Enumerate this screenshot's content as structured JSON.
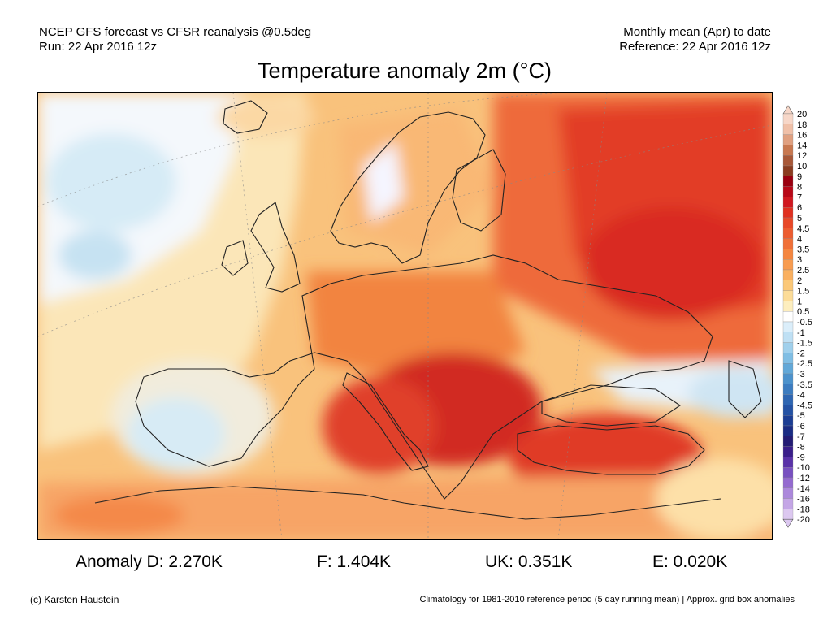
{
  "header": {
    "line1_left": "NCEP GFS forecast vs CFSR reanalysis @0.5deg",
    "line2_left": "Run: 22 Apr 2016 12z",
    "line1_right": "Monthly mean (Apr) to date",
    "line2_right": "Reference: 22 Apr 2016 12z"
  },
  "title": "Temperature anomaly 2m (°C)",
  "legend": {
    "labels": [
      "20",
      "18",
      "16",
      "14",
      "12",
      "10",
      "9",
      "8",
      "7",
      "6",
      "5",
      "4.5",
      "4",
      "3.5",
      "3",
      "2.5",
      "2",
      "1.5",
      "1",
      "0.5",
      "-0.5",
      "-1",
      "-1.5",
      "-2",
      "-2.5",
      "-3",
      "-3.5",
      "-4",
      "-4.5",
      "-5",
      "-6",
      "-7",
      "-8",
      "-9",
      "-10",
      "-12",
      "-14",
      "-16",
      "-18",
      "-20"
    ],
    "colors": [
      "#f7d7c8",
      "#f0c0a8",
      "#e0a080",
      "#c87850",
      "#a85838",
      "#8a3c20",
      "#9a0010",
      "#b80818",
      "#d01820",
      "#e03020",
      "#e84828",
      "#ec5c30",
      "#f07038",
      "#f48640",
      "#f89c50",
      "#fab060",
      "#fbc878",
      "#fcdc98",
      "#fdeebe",
      "#ffffff",
      "#dbeefa",
      "#bfe0f4",
      "#a0d0ec",
      "#80bee4",
      "#62a8d8",
      "#4c92cc",
      "#3c7cc0",
      "#2e66b2",
      "#2452a4",
      "#1c3e94",
      "#1a2c84",
      "#241c74",
      "#3a1e8a",
      "#5a32a8",
      "#7850c0",
      "#946ad0",
      "#ac88dc",
      "#c4a6e6",
      "#dcc8f0"
    ]
  },
  "stats": {
    "d": "Anomaly D: 2.270K",
    "f": "F: 1.404K",
    "uk": "UK: 0.351K",
    "e": "E: 0.020K"
  },
  "footer": {
    "credit": "(c) Karsten Haustein",
    "climatology": "Climatology for 1981-2010 reference period (5 day running mean) | Approx. grid box anomalies"
  }
}
